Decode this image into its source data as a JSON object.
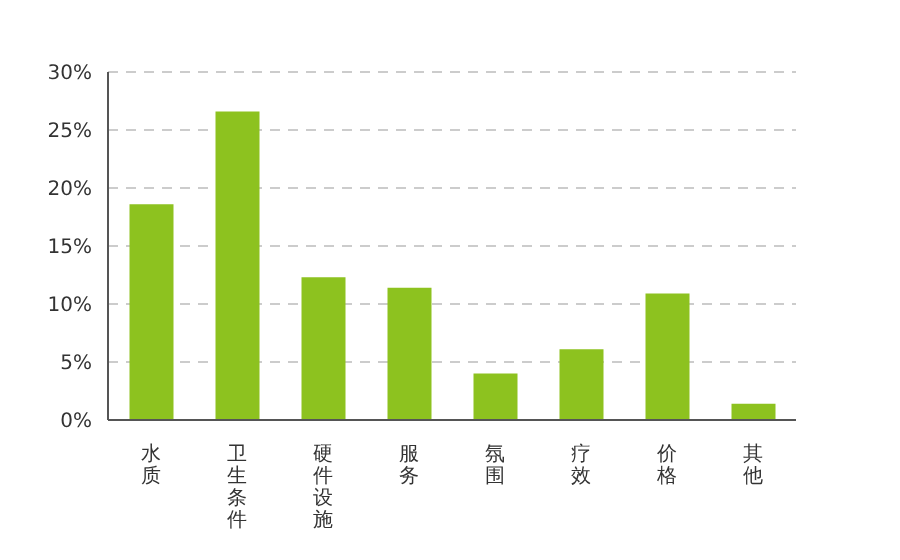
{
  "chart_data": {
    "type": "bar",
    "categories": [
      "水质",
      "卫生条件",
      "硬件设施",
      "服务",
      "氛围",
      "疗效",
      "价格",
      "其他"
    ],
    "values": [
      18.6,
      26.6,
      12.3,
      11.4,
      4.0,
      6.1,
      10.9,
      1.4
    ],
    "color": "#8dc21f",
    "ylim": [
      0,
      30
    ],
    "yticks": [
      {
        "value": 0,
        "label": "0%"
      },
      {
        "value": 5,
        "label": "5%"
      },
      {
        "value": 10,
        "label": "10%"
      },
      {
        "value": 15,
        "label": "15%"
      },
      {
        "value": 20,
        "label": "20%"
      },
      {
        "value": 25,
        "label": "25%"
      },
      {
        "value": 30,
        "label": "30%"
      }
    ],
    "grid": "y"
  }
}
